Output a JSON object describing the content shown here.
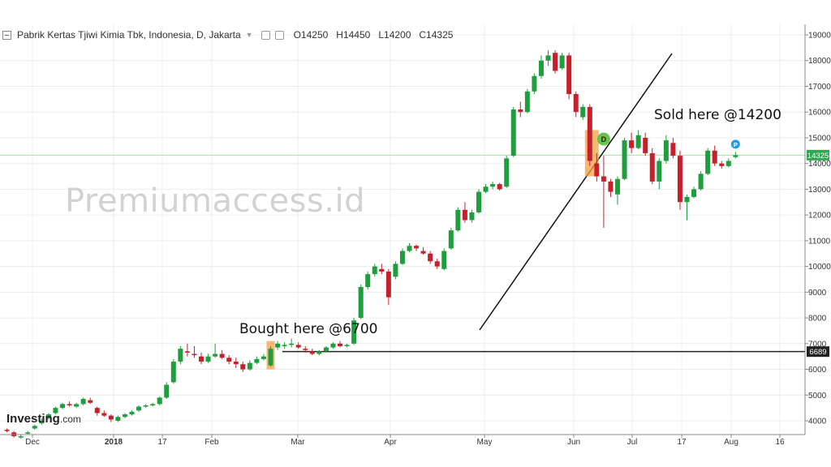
{
  "header": {
    "title": "Pabrik Kertas Tjiwi Kimia Tbk, Indonesia, D, Jakarta",
    "open": "O14250",
    "high": "H14450",
    "low": "L14200",
    "close": "C14325"
  },
  "watermark": "Premiumaccess.id",
  "logo": {
    "brand": "Investing",
    "suffix": ".com"
  },
  "annotations": {
    "bought": "Bought here @6700",
    "sold": "Sold here @14200"
  },
  "colors": {
    "up": "#1e9e3c",
    "down": "#c8202a",
    "highlight": "#f4a041",
    "current_line": "#9be89b",
    "price_tag": "#2fa84f",
    "level_tag": "#222222",
    "marker_d": "#6cc24a",
    "marker_p": "#1e9ee6"
  },
  "chart_data": {
    "type": "candlestick",
    "symbol": "Pabrik Kertas Tjiwi Kimia Tbk, Indonesia, D, Jakarta",
    "y_ticks": [
      4000,
      5000,
      6000,
      7000,
      8000,
      9000,
      10000,
      11000,
      12000,
      13000,
      14000,
      15000,
      16000,
      17000,
      18000,
      19000
    ],
    "ylim": [
      3300,
      19300
    ],
    "x_labels": [
      "Dec",
      "2018",
      "17",
      "Feb",
      "Mar",
      "Apr",
      "May",
      "Jun",
      "Jul",
      "17",
      "Aug",
      "16"
    ],
    "current_price": 14325,
    "current_price_label": "14325",
    "level": 6689,
    "level_label": "6689",
    "markers": [
      {
        "label": "D",
        "price": 14950
      },
      {
        "label": "P",
        "price": 14750
      }
    ],
    "candles": [
      [
        3650,
        3700,
        3550,
        3600
      ],
      [
        3550,
        3600,
        3350,
        3400
      ],
      [
        3350,
        3450,
        3300,
        3400
      ],
      [
        3500,
        3600,
        3450,
        3550
      ],
      [
        3700,
        3850,
        3650,
        3800
      ],
      [
        3900,
        4100,
        3850,
        4000
      ],
      [
        4100,
        4300,
        4050,
        4250
      ],
      [
        4300,
        4550,
        4250,
        4500
      ],
      [
        4500,
        4700,
        4450,
        4650
      ],
      [
        4650,
        4750,
        4550,
        4600
      ],
      [
        4550,
        4700,
        4500,
        4650
      ],
      [
        4650,
        4900,
        4600,
        4850
      ],
      [
        4800,
        4900,
        4650,
        4700
      ],
      [
        4500,
        4550,
        4200,
        4300
      ],
      [
        4300,
        4400,
        4150,
        4200
      ],
      [
        4200,
        4250,
        3950,
        4050
      ],
      [
        4000,
        4200,
        3950,
        4150
      ],
      [
        4150,
        4300,
        4100,
        4250
      ],
      [
        4250,
        4400,
        4200,
        4350
      ],
      [
        4400,
        4600,
        4350,
        4550
      ],
      [
        4550,
        4650,
        4500,
        4600
      ],
      [
        4600,
        4700,
        4550,
        4650
      ],
      [
        4650,
        4950,
        4600,
        4900
      ],
      [
        4900,
        5500,
        4850,
        5400
      ],
      [
        5500,
        6400,
        5450,
        6300
      ],
      [
        6300,
        6900,
        6200,
        6800
      ],
      [
        6700,
        7000,
        6500,
        6650
      ],
      [
        6600,
        6900,
        6450,
        6550
      ],
      [
        6500,
        6650,
        6200,
        6300
      ],
      [
        6300,
        6600,
        6250,
        6500
      ],
      [
        6500,
        7000,
        6450,
        6600
      ],
      [
        6600,
        6750,
        6400,
        6450
      ],
      [
        6450,
        6550,
        6200,
        6300
      ],
      [
        6300,
        6450,
        6050,
        6200
      ],
      [
        6200,
        6300,
        5900,
        6000
      ],
      [
        6000,
        6350,
        5950,
        6250
      ],
      [
        6250,
        6500,
        6200,
        6400
      ],
      [
        6400,
        6600,
        6350,
        6500
      ],
      [
        6150,
        6900,
        6100,
        6800
      ],
      [
        6850,
        7100,
        6750,
        7000
      ],
      [
        6900,
        7050,
        6800,
        6950
      ],
      [
        6950,
        7200,
        6850,
        7000
      ],
      [
        6950,
        7050,
        6800,
        6850
      ],
      [
        6800,
        6900,
        6650,
        6750
      ],
      [
        6700,
        6800,
        6550,
        6600
      ],
      [
        6600,
        6750,
        6550,
        6700
      ],
      [
        6700,
        6900,
        6650,
        6850
      ],
      [
        6850,
        7050,
        6800,
        7000
      ],
      [
        7000,
        7100,
        6850,
        6900
      ],
      [
        6900,
        7000,
        6850,
        6950
      ],
      [
        7000,
        8000,
        6950,
        7900
      ],
      [
        8000,
        9300,
        7950,
        9200
      ],
      [
        9200,
        9800,
        9100,
        9700
      ],
      [
        9700,
        10100,
        9600,
        10000
      ],
      [
        9900,
        10100,
        9700,
        9800
      ],
      [
        9800,
        9900,
        8500,
        8800
      ],
      [
        9600,
        10200,
        9500,
        10100
      ],
      [
        10100,
        10700,
        10050,
        10600
      ],
      [
        10600,
        10900,
        10550,
        10800
      ],
      [
        10800,
        10850,
        10600,
        10700
      ],
      [
        10600,
        10750,
        10450,
        10500
      ],
      [
        10500,
        10600,
        10100,
        10200
      ],
      [
        10200,
        10300,
        9900,
        10000
      ],
      [
        9900,
        10700,
        9850,
        10600
      ],
      [
        10700,
        11500,
        10650,
        11400
      ],
      [
        11400,
        12300,
        11350,
        12200
      ],
      [
        12200,
        12500,
        11700,
        11800
      ],
      [
        11800,
        12200,
        11700,
        12100
      ],
      [
        12100,
        13000,
        12050,
        12900
      ],
      [
        12900,
        13200,
        12850,
        13100
      ],
      [
        13100,
        13300,
        13000,
        13200
      ],
      [
        13200,
        13250,
        12950,
        13000
      ],
      [
        13100,
        14300,
        13050,
        14200
      ],
      [
        14300,
        16200,
        14250,
        16100
      ],
      [
        16100,
        16400,
        15800,
        16000
      ],
      [
        16000,
        16900,
        15950,
        16800
      ],
      [
        16800,
        17500,
        16700,
        17400
      ],
      [
        17400,
        18200,
        17300,
        18000
      ],
      [
        18000,
        18400,
        17800,
        18200
      ],
      [
        18300,
        18400,
        17500,
        17600
      ],
      [
        17700,
        18300,
        17650,
        18200
      ],
      [
        18200,
        18300,
        16500,
        16700
      ],
      [
        16700,
        16800,
        15800,
        16000
      ],
      [
        15800,
        16300,
        15700,
        16200
      ],
      [
        16200,
        16300,
        13900,
        14100
      ],
      [
        14000,
        14400,
        13300,
        13500
      ],
      [
        13500,
        14300,
        11500,
        13300
      ],
      [
        13300,
        13400,
        12700,
        12900
      ],
      [
        12800,
        13500,
        12400,
        13400
      ],
      [
        13400,
        15000,
        13350,
        14900
      ],
      [
        14900,
        15200,
        14400,
        14600
      ],
      [
        14600,
        15300,
        14550,
        15100
      ],
      [
        15000,
        15200,
        14300,
        14400
      ],
      [
        14400,
        14600,
        13200,
        13300
      ],
      [
        13300,
        14200,
        13000,
        14100
      ],
      [
        14100,
        15100,
        14000,
        14900
      ],
      [
        14800,
        15000,
        14200,
        14300
      ],
      [
        14300,
        14500,
        12200,
        12500
      ],
      [
        12500,
        12800,
        11800,
        12700
      ],
      [
        12700,
        13100,
        12650,
        13000
      ],
      [
        13000,
        13700,
        12950,
        13600
      ],
      [
        13600,
        14600,
        13550,
        14500
      ],
      [
        14500,
        14700,
        13900,
        14000
      ],
      [
        14000,
        14100,
        13800,
        13900
      ],
      [
        13900,
        14200,
        13850,
        14100
      ],
      [
        14250,
        14450,
        14200,
        14325
      ]
    ]
  }
}
